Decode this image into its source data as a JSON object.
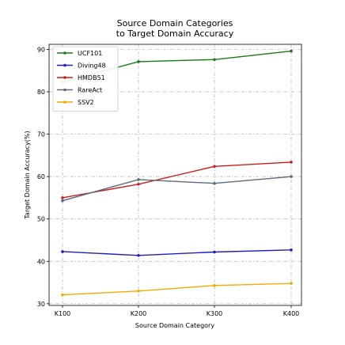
{
  "chart_data": {
    "type": "line",
    "title": [
      "Source Domain Categories",
      "to Target Domain Accuracy"
    ],
    "xlabel": "Source Domain Category",
    "ylabel": "Target Domain Accuracy(%)",
    "categories": [
      "K100",
      "K200",
      "K300",
      "K400"
    ],
    "ylim": [
      29.6,
      91.2
    ],
    "yticks": [
      30,
      40,
      50,
      60,
      70,
      80,
      90
    ],
    "grid": true,
    "legend_position": "top-left",
    "series": [
      {
        "name": "UCF101",
        "color": "#1a7a1a",
        "values": [
          82.3,
          87.1,
          87.6,
          89.6
        ]
      },
      {
        "name": "Diving48",
        "color": "#1f1fbf",
        "values": [
          42.3,
          41.4,
          42.2,
          42.7
        ]
      },
      {
        "name": "HMDB51",
        "color": "#c81e1e",
        "values": [
          55.0,
          58.2,
          62.4,
          63.4
        ]
      },
      {
        "name": "RareAct",
        "color": "#5a6b7a",
        "values": [
          54.3,
          59.3,
          58.4,
          60.0
        ]
      },
      {
        "name": "SSV2",
        "color": "#f2a900",
        "values": [
          32.1,
          33.0,
          34.3,
          34.8
        ]
      }
    ]
  }
}
